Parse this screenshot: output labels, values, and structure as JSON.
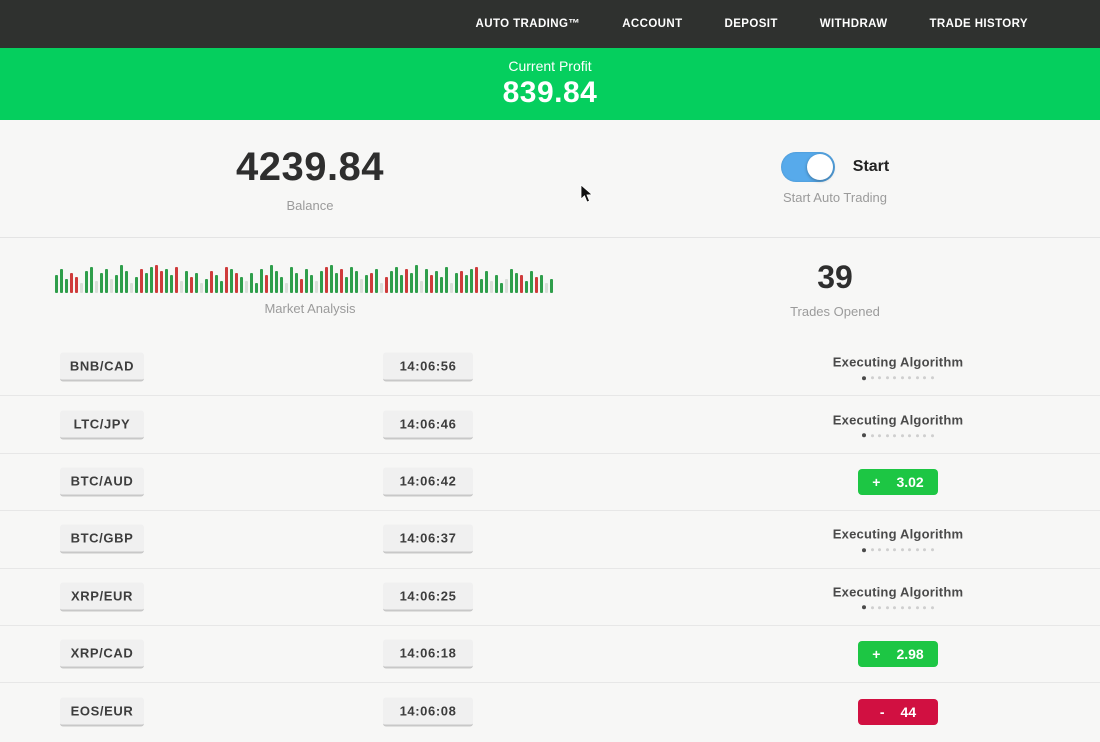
{
  "nav": {
    "items": [
      "AUTO TRADING™",
      "ACCOUNT",
      "DEPOSIT",
      "WITHDRAW",
      "TRADE HISTORY"
    ]
  },
  "profit_banner": {
    "label": "Current Profit",
    "value": "839.84",
    "color": "#05cf5e"
  },
  "account": {
    "balance": "4239.84",
    "balance_label": "Balance",
    "toggle_label": "Start",
    "toggle_state": "on",
    "toggle_color": "#57aaeb",
    "toggle_caption": "Start Auto Trading"
  },
  "market": {
    "label": "Market Analysis",
    "trades_opened": "39",
    "trades_opened_label": "Trades Opened",
    "bar_colors": {
      "g": "#2f9e4b",
      "r": "#cf3b3b",
      "p": "#d9ded8"
    },
    "analysis_bars": [
      "g18",
      "g24",
      "g14",
      "r20",
      "r16",
      "p10",
      "g22",
      "g26",
      "p12",
      "g20",
      "g24",
      "p14",
      "g18",
      "g28",
      "g22",
      "p10",
      "g16",
      "r24",
      "g20",
      "g26",
      "r28",
      "r22",
      "g24",
      "g18",
      "r26",
      "p12",
      "g22",
      "r16",
      "g20",
      "p10",
      "g14",
      "r22",
      "g18",
      "g12",
      "r26",
      "g24",
      "r20",
      "g16",
      "p12",
      "g20",
      "g10",
      "g24",
      "r18",
      "g28",
      "g22",
      "g16",
      "p10",
      "g26",
      "g20",
      "r14",
      "g24",
      "g18",
      "p12",
      "g22",
      "r26",
      "g28",
      "g20",
      "r24",
      "g16",
      "g26",
      "g22",
      "p14",
      "g18",
      "r20",
      "g24",
      "p10",
      "r16",
      "g22",
      "g26",
      "g18",
      "r24",
      "g20",
      "g28",
      "p12",
      "g24",
      "r18",
      "g22",
      "g16",
      "g26",
      "p10",
      "g20",
      "r22",
      "g18",
      "g24",
      "r26",
      "g14",
      "g22",
      "p12",
      "g18",
      "g10",
      "p14",
      "g24",
      "g20",
      "r18",
      "g12",
      "g22",
      "r16",
      "g18",
      "p10",
      "g14"
    ]
  },
  "executing": {
    "label": "Executing Algorithm",
    "dots_total": 10,
    "dots_active": 1
  },
  "status_colors": {
    "profit": "#1dc644",
    "loss": "#d11041"
  },
  "trades": [
    {
      "pair": "BNB/CAD",
      "time": "14:06:56",
      "status": "executing"
    },
    {
      "pair": "LTC/JPY",
      "time": "14:06:46",
      "status": "executing"
    },
    {
      "pair": "BTC/AUD",
      "time": "14:06:42",
      "status": "profit",
      "sign": "+",
      "amount": "3.02"
    },
    {
      "pair": "BTC/GBP",
      "time": "14:06:37",
      "status": "executing"
    },
    {
      "pair": "XRP/EUR",
      "time": "14:06:25",
      "status": "executing"
    },
    {
      "pair": "XRP/CAD",
      "time": "14:06:18",
      "status": "profit",
      "sign": "+",
      "amount": "2.98"
    },
    {
      "pair": "EOS/EUR",
      "time": "14:06:08",
      "status": "loss",
      "sign": "-",
      "amount": "44"
    }
  ]
}
